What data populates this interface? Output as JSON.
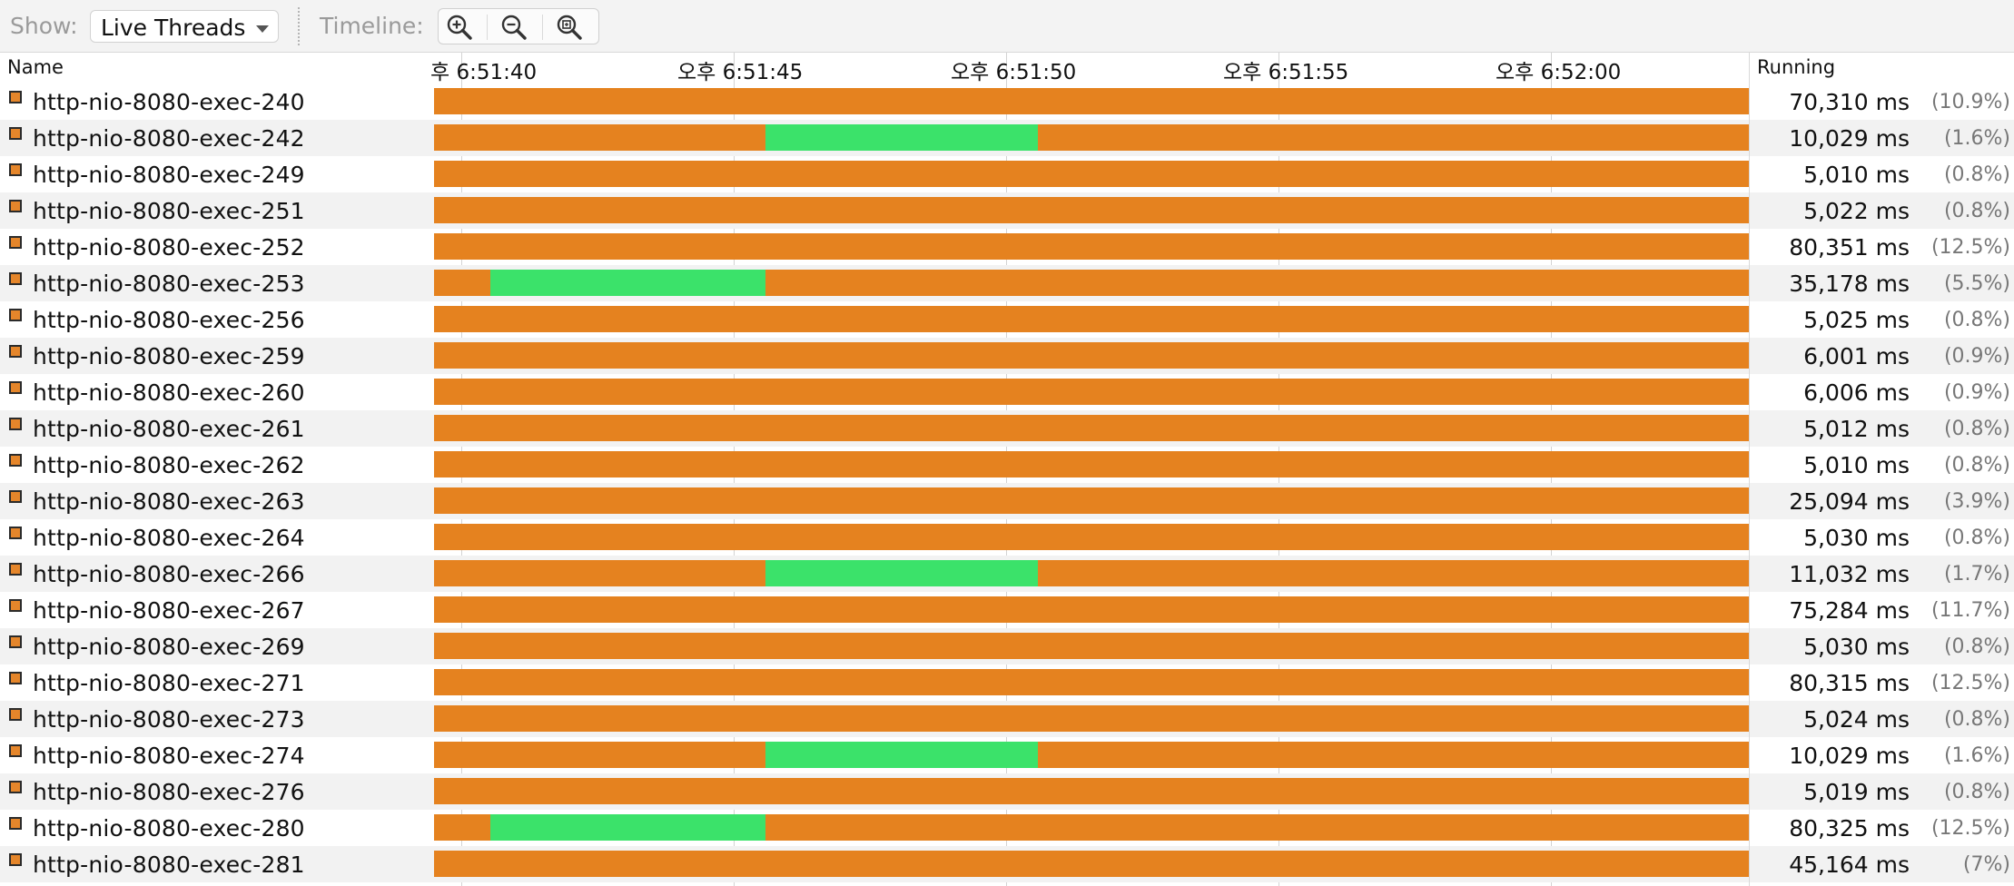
{
  "toolbar": {
    "show_label": "Show:",
    "show_value": "Live Threads",
    "timeline_label": "Timeline:",
    "icons": [
      "zoom-in-icon",
      "zoom-out-icon",
      "zoom-fit-icon"
    ]
  },
  "columns": {
    "name": "Name",
    "running": "Running"
  },
  "timeline": {
    "ticks": [
      "후 6:51:40",
      "오후 6:51:45",
      "오후 6:51:50",
      "오후 6:51:55",
      "오후 6:52:00"
    ]
  },
  "colors": {
    "running": "#e5821f",
    "sleeping": "#3be26a"
  },
  "threads": [
    {
      "name": "http-nio-8080-exec-240",
      "ms": "70,310 ms",
      "pct": "(10.9%)",
      "green": null
    },
    {
      "name": "http-nio-8080-exec-242",
      "ms": "10,029 ms",
      "pct": "(1.6%)",
      "green": [
        0.252,
        0.459
      ]
    },
    {
      "name": "http-nio-8080-exec-249",
      "ms": "5,010 ms",
      "pct": "(0.8%)",
      "green": null
    },
    {
      "name": "http-nio-8080-exec-251",
      "ms": "5,022 ms",
      "pct": "(0.8%)",
      "green": null
    },
    {
      "name": "http-nio-8080-exec-252",
      "ms": "80,351 ms",
      "pct": "(12.5%)",
      "green": null
    },
    {
      "name": "http-nio-8080-exec-253",
      "ms": "35,178 ms",
      "pct": "(5.5%)",
      "green": [
        0.043,
        0.252
      ]
    },
    {
      "name": "http-nio-8080-exec-256",
      "ms": "5,025 ms",
      "pct": "(0.8%)",
      "green": null
    },
    {
      "name": "http-nio-8080-exec-259",
      "ms": "6,001 ms",
      "pct": "(0.9%)",
      "green": null
    },
    {
      "name": "http-nio-8080-exec-260",
      "ms": "6,006 ms",
      "pct": "(0.9%)",
      "green": null
    },
    {
      "name": "http-nio-8080-exec-261",
      "ms": "5,012 ms",
      "pct": "(0.8%)",
      "green": null
    },
    {
      "name": "http-nio-8080-exec-262",
      "ms": "5,010 ms",
      "pct": "(0.8%)",
      "green": null
    },
    {
      "name": "http-nio-8080-exec-263",
      "ms": "25,094 ms",
      "pct": "(3.9%)",
      "green": null
    },
    {
      "name": "http-nio-8080-exec-264",
      "ms": "5,030 ms",
      "pct": "(0.8%)",
      "green": null
    },
    {
      "name": "http-nio-8080-exec-266",
      "ms": "11,032 ms",
      "pct": "(1.7%)",
      "green": [
        0.252,
        0.459
      ]
    },
    {
      "name": "http-nio-8080-exec-267",
      "ms": "75,284 ms",
      "pct": "(11.7%)",
      "green": null
    },
    {
      "name": "http-nio-8080-exec-269",
      "ms": "5,030 ms",
      "pct": "(0.8%)",
      "green": null
    },
    {
      "name": "http-nio-8080-exec-271",
      "ms": "80,315 ms",
      "pct": "(12.5%)",
      "green": null
    },
    {
      "name": "http-nio-8080-exec-273",
      "ms": "5,024 ms",
      "pct": "(0.8%)",
      "green": null
    },
    {
      "name": "http-nio-8080-exec-274",
      "ms": "10,029 ms",
      "pct": "(1.6%)",
      "green": [
        0.252,
        0.459
      ]
    },
    {
      "name": "http-nio-8080-exec-276",
      "ms": "5,019 ms",
      "pct": "(0.8%)",
      "green": null
    },
    {
      "name": "http-nio-8080-exec-280",
      "ms": "80,325 ms",
      "pct": "(12.5%)",
      "green": [
        0.043,
        0.252
      ]
    },
    {
      "name": "http-nio-8080-exec-281",
      "ms": "45,164 ms",
      "pct": "(7%)",
      "green": null
    }
  ]
}
